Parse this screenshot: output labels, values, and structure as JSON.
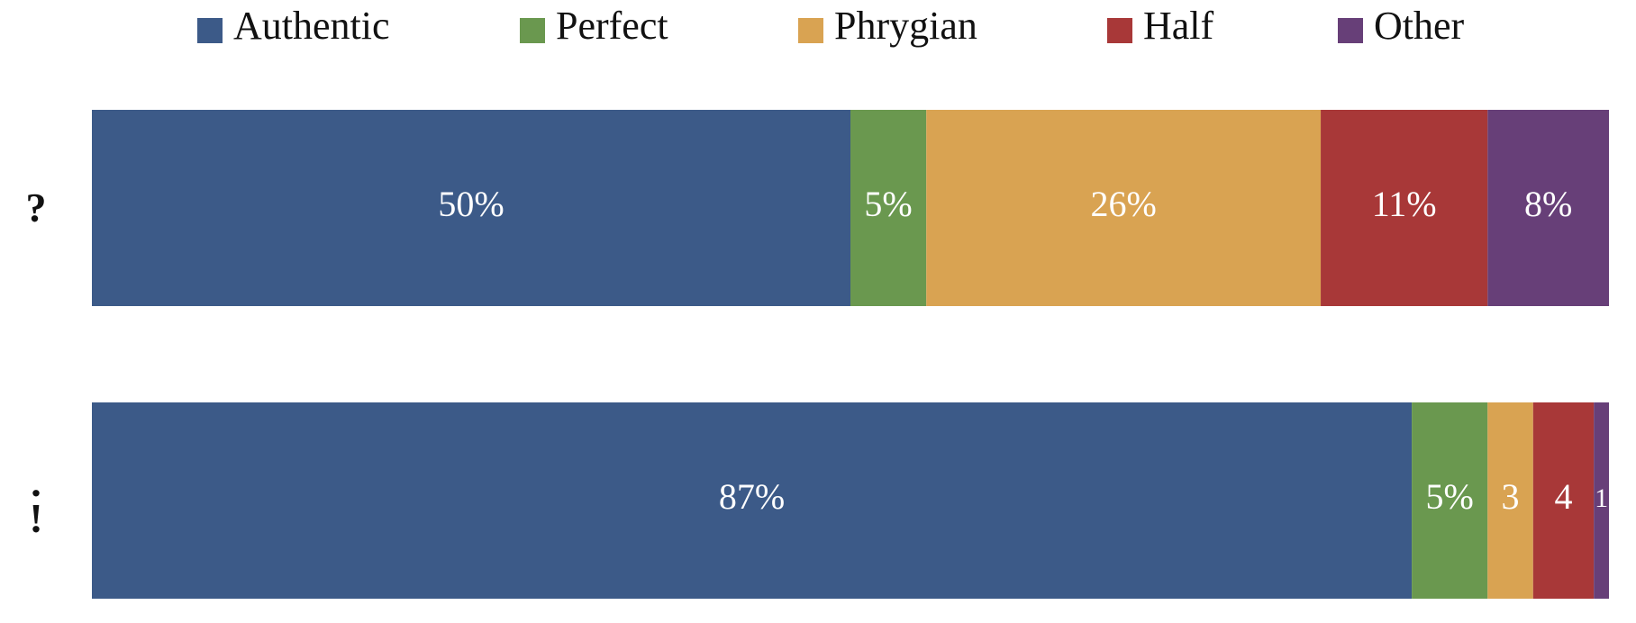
{
  "chart_data": {
    "type": "stacked-bar-horizontal",
    "categories": [
      "?",
      ".\n!"
    ],
    "xlim": [
      0,
      100
    ],
    "legend": "top",
    "series": [
      {
        "name": "Authentic",
        "color": "#3c5a88",
        "values": [
          50,
          87
        ],
        "value_labels": [
          "50%",
          "87%"
        ]
      },
      {
        "name": "Perfect",
        "color": "#6a984f",
        "values": [
          5,
          5
        ],
        "value_labels": [
          "5%",
          "5%"
        ]
      },
      {
        "name": "Phrygian",
        "color": "#d9a352",
        "values": [
          26,
          3
        ],
        "value_labels": [
          "26%",
          "3"
        ]
      },
      {
        "name": "Half",
        "color": "#a83838",
        "values": [
          11,
          4
        ],
        "value_labels": [
          "11%",
          "4"
        ]
      },
      {
        "name": "Other",
        "color": "#673f78",
        "values": [
          8,
          1
        ],
        "value_labels": [
          "8%",
          "1"
        ]
      }
    ]
  }
}
